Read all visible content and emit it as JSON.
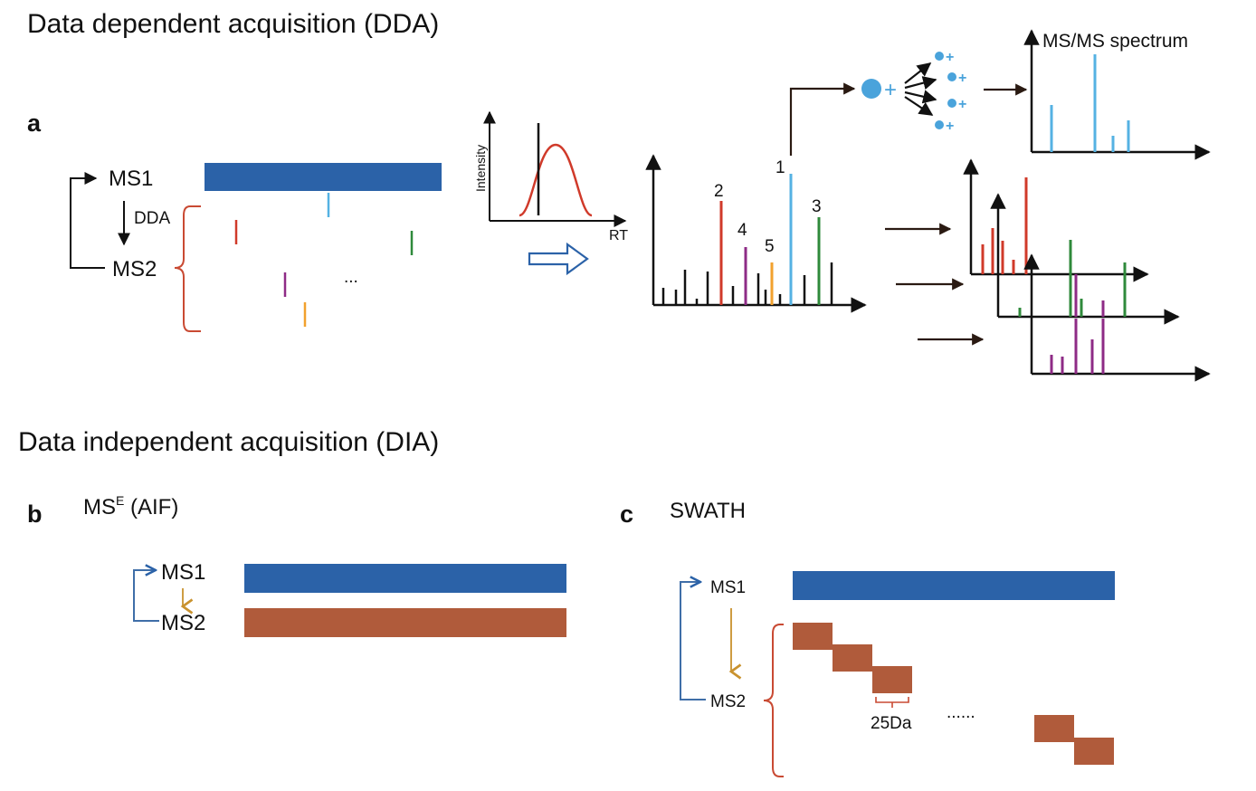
{
  "dda": {
    "heading": "Data dependent acquisition (DDA)",
    "panel": "a",
    "ms1": "MS1",
    "dda_label": "DDA",
    "ms2": "MS2",
    "ellipsis": "...",
    "inset_ylabel": "Intensity",
    "inset_xlabel": "RT",
    "peak_labels": [
      "1",
      "2",
      "3",
      "4",
      "5"
    ],
    "spectrum_title": "MS/MS spectrum",
    "fragment_charge": "+"
  },
  "dia": {
    "heading": "Data independent acquisition (DIA)",
    "mse": {
      "panel": "b",
      "title_main": "MS",
      "title_sup": "E",
      "title_rest": " (AIF)",
      "ms1": "MS1",
      "ms2": "MS2"
    },
    "swath": {
      "panel": "c",
      "title": "SWATH",
      "ms1": "MS1",
      "ms2": "MS2",
      "window": "25Da",
      "dots": "......"
    }
  },
  "colors": {
    "ms1_bar": "#2b62a8",
    "ms2_bar": "#b05b3b",
    "bracket": "#c94a33",
    "arrow_gold": "#c9922e",
    "blue_bracket": "#3f6ea8",
    "ion": "#4aa3db",
    "red": "#d03a2a",
    "green": "#2f8a3b",
    "purple": "#8e2b86",
    "orange": "#f2a12e",
    "lightblue": "#55b2e3"
  }
}
